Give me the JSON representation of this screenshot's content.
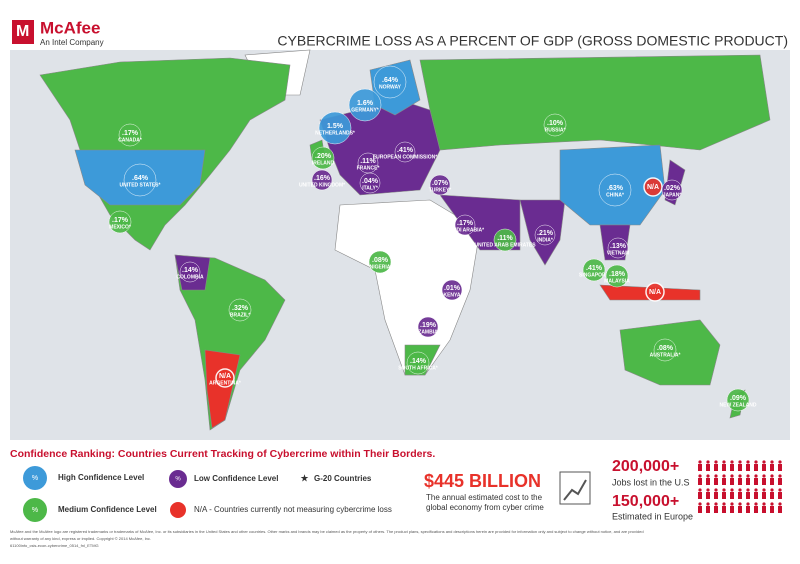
{
  "header": {
    "logo": "McAfee",
    "logo_sub": "An Intel Company",
    "title": "CYBERCRIME LOSS AS A PERCENT OF GDP (GROSS DOMESTIC PRODUCT)"
  },
  "colors": {
    "high": "#3d9ad9",
    "medium": "#4db848",
    "low": "#6a2c91",
    "na": "#e8322a"
  },
  "countries": [
    {
      "name": "CANADA*",
      "value": 0.17,
      "label": ".17%",
      "level": "medium"
    },
    {
      "name": "UNITED STATES*",
      "value": 0.64,
      "label": ".64%",
      "level": "high"
    },
    {
      "name": "MEXICO*",
      "value": 0.17,
      "label": ".17%",
      "level": "medium"
    },
    {
      "name": "COLOMBIA",
      "value": 0.14,
      "label": ".14%",
      "level": "low"
    },
    {
      "name": "BRAZIL*",
      "value": 0.32,
      "label": ".32%",
      "level": "medium"
    },
    {
      "name": "ARGENTINA*",
      "label": "N/A",
      "level": "na"
    },
    {
      "name": "NETHERLANDS*",
      "value": 1.5,
      "label": "1.5%",
      "level": "high"
    },
    {
      "name": "GERMANY*",
      "value": 1.6,
      "label": "1.6%",
      "level": "high"
    },
    {
      "name": "NORWAY",
      "value": 0.64,
      "label": ".64%",
      "level": "high"
    },
    {
      "name": "RUSSIA*",
      "value": 0.1,
      "label": ".10%",
      "level": "medium"
    },
    {
      "name": "IRELAND",
      "value": 0.2,
      "label": ".20%",
      "level": "medium"
    },
    {
      "name": "UNITED KINGDOM*",
      "value": 0.16,
      "label": ".16%",
      "level": "low"
    },
    {
      "name": "FRANCE*",
      "value": 0.11,
      "label": ".11%",
      "level": "low"
    },
    {
      "name": "ITALY*",
      "value": 0.04,
      "label": ".04%",
      "level": "low"
    },
    {
      "name": "EUROPEAN COMMISSION*",
      "value": 0.41,
      "label": ".41%",
      "level": "low"
    },
    {
      "name": "TURKEY*",
      "value": 0.07,
      "label": ".07%",
      "level": "low"
    },
    {
      "name": "SAUDI ARABIA*",
      "value": 0.17,
      "label": ".17%",
      "level": "low"
    },
    {
      "name": "UNITED ARAB EMIRATES",
      "value": 0.11,
      "label": ".11%",
      "level": "medium"
    },
    {
      "name": "INDIA*",
      "value": 0.21,
      "label": ".21%",
      "level": "low"
    },
    {
      "name": "CHINA*",
      "value": 0.63,
      "label": ".63%",
      "level": "high"
    },
    {
      "label": "N/A",
      "level": "na"
    },
    {
      "name": "JAPAN*",
      "value": 0.02,
      "label": ".02%",
      "level": "low"
    },
    {
      "name": "VIETNAM",
      "value": 0.13,
      "label": ".13%",
      "level": "low"
    },
    {
      "name": "SINGAPORE",
      "value": 0.41,
      "label": ".41%",
      "level": "medium"
    },
    {
      "name": "MALAYSIA",
      "value": 0.18,
      "label": ".18%",
      "level": "medium"
    },
    {
      "label": "N/A",
      "level": "na"
    },
    {
      "name": "NIGERIA",
      "value": 0.08,
      "label": ".08%",
      "level": "medium"
    },
    {
      "name": "KENYA",
      "value": 0.01,
      "label": ".01%",
      "level": "low"
    },
    {
      "name": "ZAMBIA",
      "value": 0.19,
      "label": ".19%",
      "level": "low"
    },
    {
      "name": "SOUTH AFRICA*",
      "value": 0.14,
      "label": ".14%",
      "level": "medium"
    },
    {
      "name": "AUSTRALIA*",
      "value": 0.08,
      "label": ".08%",
      "level": "medium"
    },
    {
      "name": "NEW ZEALAND",
      "value": 0.09,
      "label": ".09%",
      "level": "medium"
    }
  ],
  "legend": {
    "title": "Confidence Ranking: Countries Current Tracking of Cybercrime within Their Borders.",
    "symbol": "%",
    "high": "High Confidence Level",
    "medium": "Medium Confidence Level",
    "low": "Low Confidence Level",
    "na": "N/A - Countries currently not measuring cybercrime loss",
    "star": "★",
    "g20": "G-20 Countries"
  },
  "stats": {
    "cost": "$445 BILLION",
    "cost_desc_1": "The annual estimated cost to the",
    "cost_desc_2": "global economy from cyber crime",
    "jobs_us": "200,000+",
    "jobs_us_desc": "Jobs lost in the U.S",
    "jobs_eu": "150,000+",
    "jobs_eu_desc": "Estimated in Europe"
  },
  "footer": {
    "line1": "McAfee and the McAfee logo are registered trademarks or trademarks of McAfee, Inc. or its subsidiaries in the United States and other countries. Other marks and brands may be claimed as the property of others. The product plans, specifications and descriptions herein are provided for information only and subject to change without notice, and are provided",
    "line2": "without warranty of any kind, express or implied. Copyright © 2014 McAfee, Inc.",
    "line3": "61100info_csis-econ-cybercrime_0514_fnl_ETMG"
  }
}
